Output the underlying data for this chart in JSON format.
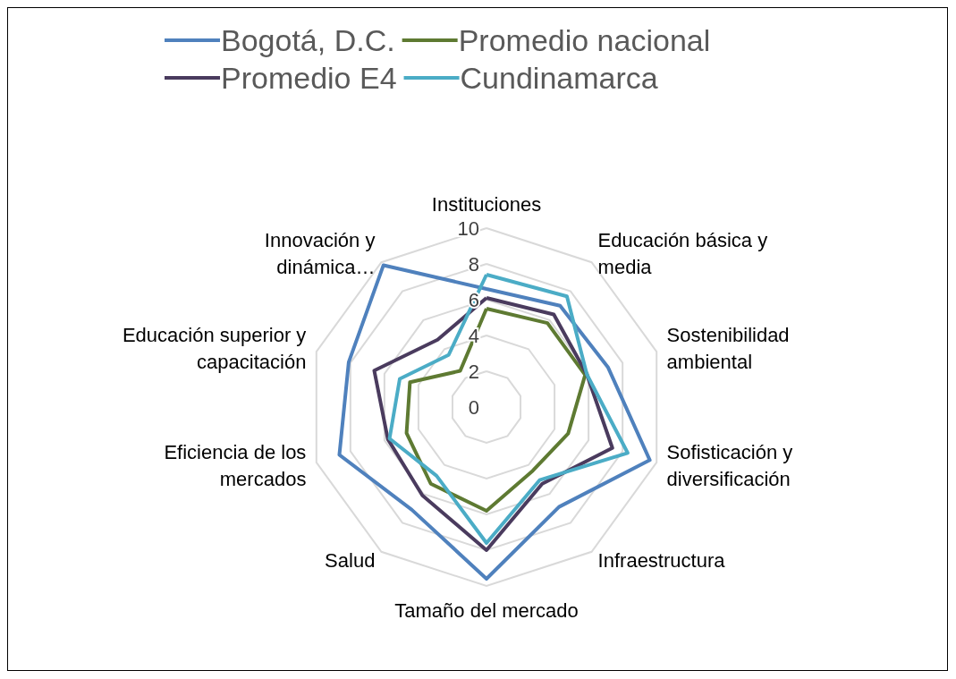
{
  "chart_data": {
    "type": "radar",
    "categories": [
      "Instituciones",
      "Educación básica y media",
      "Sostenibilidad ambiental",
      "Sofisticación y diversificación",
      "Infraestructura",
      "Tamaño del mercado",
      "Salud",
      "Eficiencia de los mercados",
      "Educación superior y capacitación",
      "Innovación y dinámica…"
    ],
    "series": [
      {
        "name": "Bogotá, D.C.",
        "color": "#4f81bd",
        "values": [
          6.6,
          7.0,
          7.15,
          9.6,
          6.9,
          9.6,
          7.1,
          8.65,
          8.1,
          9.8
        ]
      },
      {
        "name": "Promedio nacional",
        "color": "#5e7a32",
        "values": [
          5.5,
          5.8,
          5.8,
          4.8,
          4.4,
          5.8,
          5.3,
          4.7,
          4.5,
          2.5
        ]
      },
      {
        "name": "Promedio E4",
        "color": "#4a3b5e",
        "values": [
          6.1,
          6.4,
          5.9,
          7.4,
          5.3,
          8.0,
          6.1,
          5.8,
          6.6,
          4.65
        ]
      },
      {
        "name": "Cundinamarca",
        "color": "#4bacc6",
        "values": [
          7.4,
          7.65,
          5.9,
          8.3,
          5.05,
          7.6,
          4.75,
          5.7,
          5.1,
          3.6
        ]
      }
    ],
    "ylim": [
      0,
      10
    ],
    "yticks": [
      0,
      2,
      4,
      6,
      8,
      10
    ],
    "grid": true,
    "legend": "top",
    "marker": "none",
    "line_style": "solid"
  }
}
